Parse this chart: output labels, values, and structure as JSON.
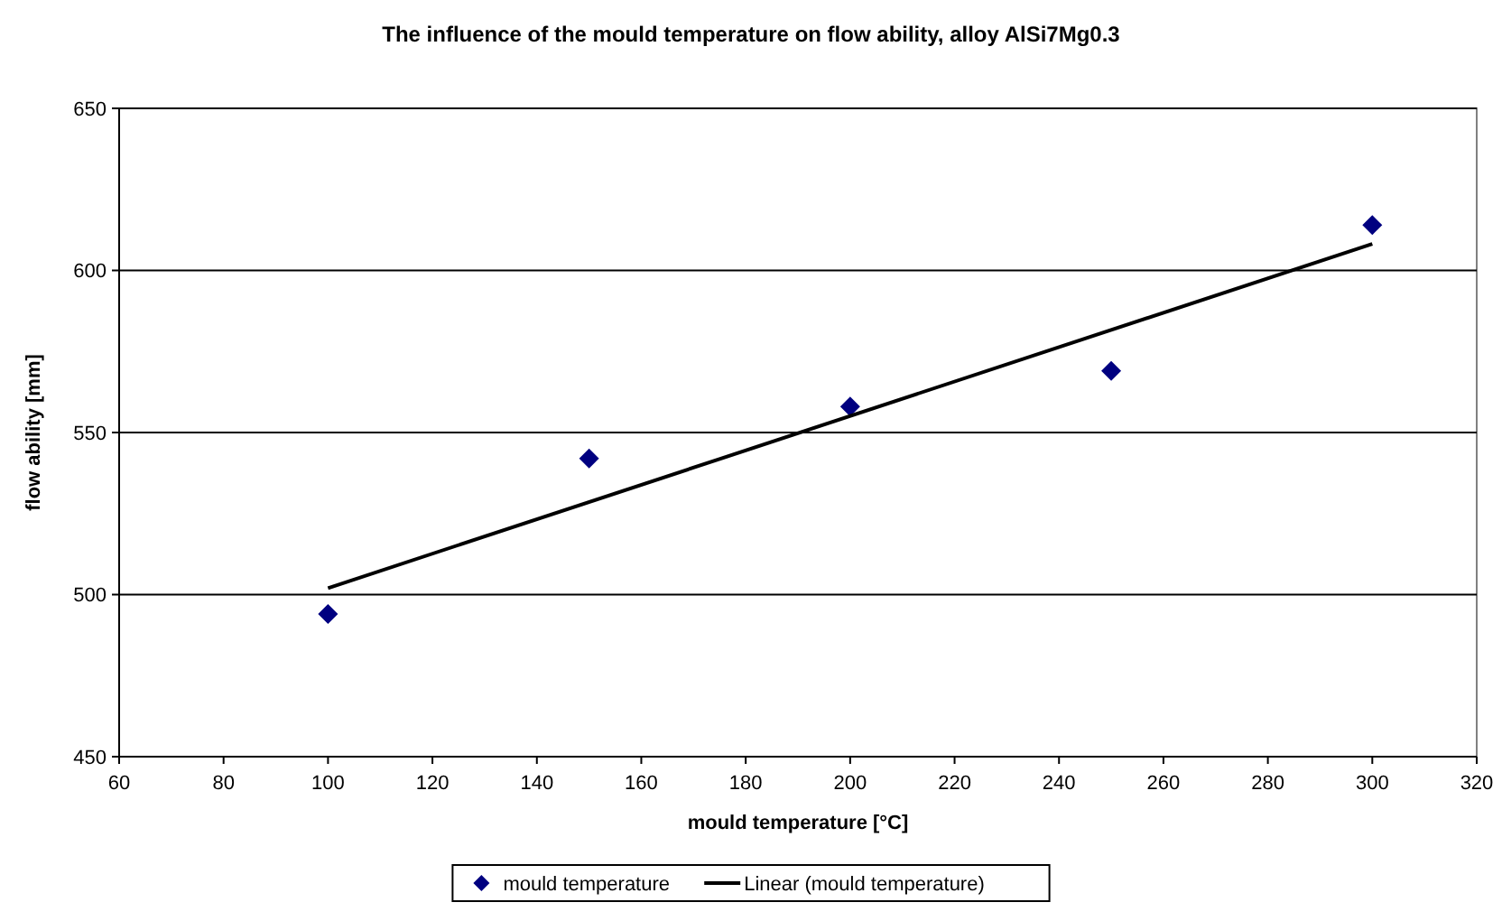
{
  "chart_data": {
    "type": "scatter",
    "title": "The influence of the mould temperature on flow ability, alloy AlSi7Mg0.3",
    "xlabel": "mould temperature [°C]",
    "ylabel": "flow ability [mm]",
    "series": [
      {
        "name": "mould temperature",
        "color": "#000080",
        "marker": "diamond",
        "x": [
          100,
          150,
          200,
          250,
          300
        ],
        "values": [
          494,
          542,
          558,
          569,
          614
        ]
      },
      {
        "name": "Linear (mould temperature)",
        "type": "line",
        "color": "#000000",
        "marker": "none",
        "x": [
          100,
          300
        ],
        "values": [
          502,
          608.2
        ]
      }
    ],
    "xlim": [
      60,
      320
    ],
    "xticks": [
      60,
      80,
      100,
      120,
      140,
      160,
      180,
      200,
      220,
      240,
      260,
      280,
      300,
      320
    ],
    "ylim": [
      450,
      650
    ],
    "yticks": [
      450,
      500,
      550,
      600,
      650
    ],
    "grid": "y",
    "legend": "bottom"
  }
}
